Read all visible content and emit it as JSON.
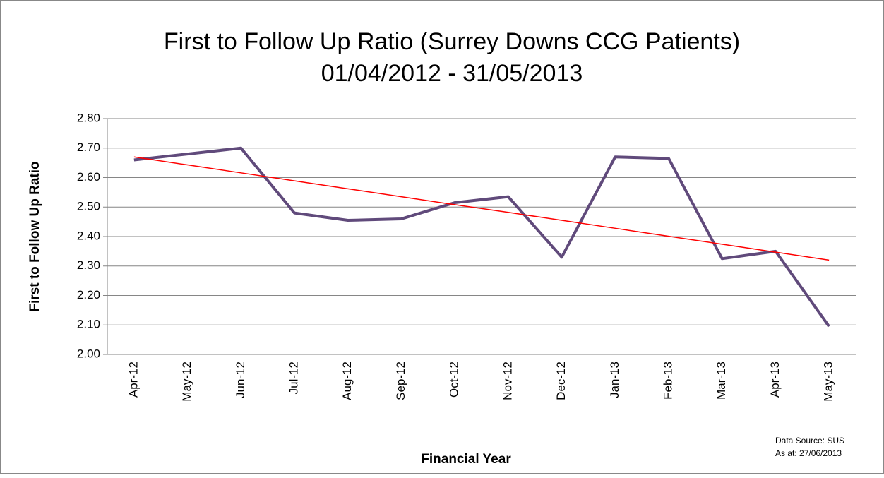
{
  "chart_data": {
    "type": "line",
    "title": [
      "First to Follow Up Ratio (Surrey Downs CCG Patients)",
      "01/04/2012 - 31/05/2013"
    ],
    "y_label": "First to Follow Up Ratio",
    "x_label": "Financial Year",
    "note": [
      "Data Source: SUS",
      "As at: 27/06/2013"
    ],
    "categories": [
      "Apr-12",
      "May-12",
      "Jun-12",
      "Jul-12",
      "Aug-12",
      "Sep-12",
      "Oct-12",
      "Nov-12",
      "Dec-12",
      "Jan-13",
      "Feb-13",
      "Mar-13",
      "Apr-13",
      "May-13"
    ],
    "series": [
      {
        "color": "#604a7b",
        "values": [
          2.66,
          2.68,
          2.7,
          2.48,
          2.455,
          2.46,
          2.515,
          2.535,
          2.33,
          2.67,
          2.665,
          2.325,
          2.35,
          2.095
        ]
      }
    ],
    "trendline": {
      "color": "#ff0000",
      "values": [
        2.67,
        2.643,
        2.616,
        2.589,
        2.562,
        2.535,
        2.508,
        2.482,
        2.455,
        2.428,
        2.401,
        2.374,
        2.347,
        2.32
      ]
    },
    "ylim": [
      2.0,
      2.8
    ],
    "yticks": [
      {
        "value": 2.0,
        "label": "2.00"
      },
      {
        "value": 2.1,
        "label": "2.10"
      },
      {
        "value": 2.2,
        "label": "2.20"
      },
      {
        "value": 2.3,
        "label": "2.30"
      },
      {
        "value": 2.4,
        "label": "2.40"
      },
      {
        "value": 2.5,
        "label": "2.50"
      },
      {
        "value": 2.6,
        "label": "2.60"
      },
      {
        "value": 2.7,
        "label": "2.70"
      },
      {
        "value": 2.8,
        "label": "2.80"
      }
    ],
    "grid": true
  }
}
